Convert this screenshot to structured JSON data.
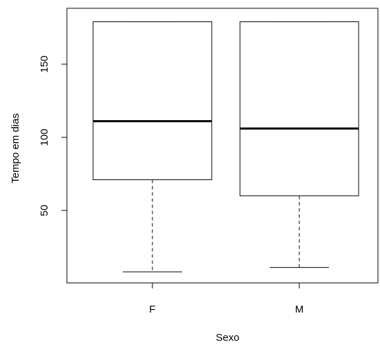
{
  "chart_data": {
    "type": "boxplot",
    "title": "",
    "xlabel": "Sexo",
    "ylabel": "Tempo em dias",
    "ylim": [
      0,
      185
    ],
    "y_ticks": [
      50,
      100,
      150
    ],
    "grid": false,
    "legend": "none",
    "categories": [
      "F",
      "M"
    ],
    "boxes": [
      {
        "category": "F",
        "whisker_low": 8,
        "q1": 71,
        "median": 111,
        "q3": 179,
        "whisker_high": 179
      },
      {
        "category": "M",
        "whisker_low": 11,
        "q1": 60,
        "median": 106,
        "q3": 179,
        "whisker_high": 179
      }
    ]
  }
}
